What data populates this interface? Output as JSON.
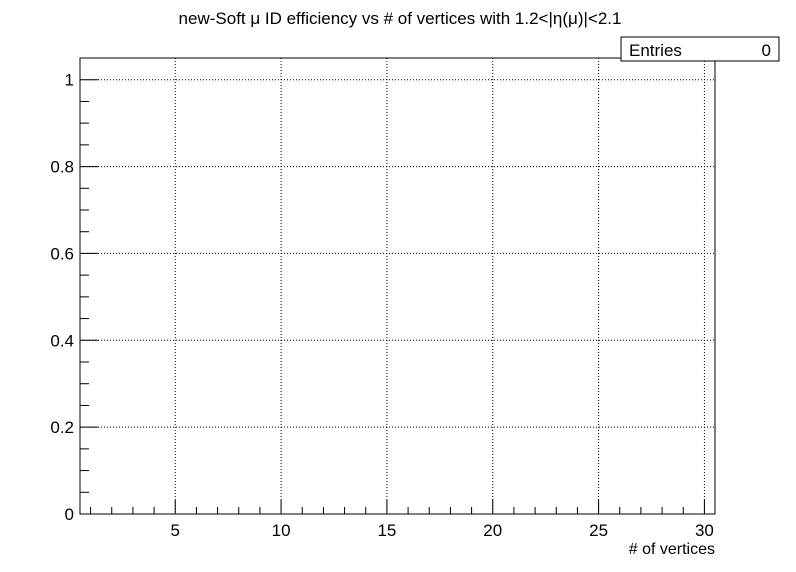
{
  "chart_data": {
    "type": "scatter",
    "title": "new-Soft μ ID efficiency vs # of vertices with 1.2<|η(μ)|<2.1",
    "xlabel": "# of vertices",
    "ylabel": "",
    "xlim": [
      0.5,
      30.5
    ],
    "ylim": [
      0,
      1.05
    ],
    "x_ticks": [
      5,
      10,
      15,
      20,
      25,
      30
    ],
    "y_ticks": [
      0,
      0.2,
      0.4,
      0.6,
      0.8,
      1
    ],
    "y_tick_labels": [
      "0",
      "0.2",
      "0.4",
      "0.6",
      "0.8",
      "1"
    ],
    "grid": true,
    "series": [],
    "stats_box": {
      "label": "Entries",
      "value": "0",
      "placement": "top-right"
    }
  }
}
